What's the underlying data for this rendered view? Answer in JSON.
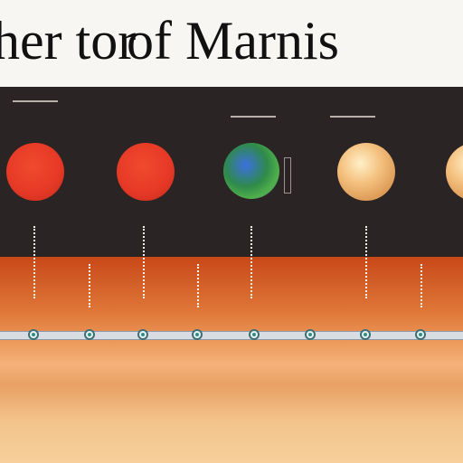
{
  "title": {
    "part1": "her tor",
    "part2": "of Marnis"
  },
  "columns": [
    {
      "heading": "",
      "label": "",
      "planet": "red-planet"
    },
    {
      "heading": "",
      "label": "",
      "planet": "red-planet"
    },
    {
      "heading": "",
      "label": "",
      "planet": "earth"
    },
    {
      "heading": "",
      "label": "",
      "planet": "jupiter"
    },
    {
      "heading": "",
      "label": "",
      "planet": "jupiter"
    }
  ],
  "band_label": "",
  "colors": {
    "header_bg": "#f7f6f3",
    "dark_bg": "#2a2524",
    "red_planet": "#e63a26",
    "earth_blue": "#2b66c9",
    "earth_green": "#51b04b",
    "jupiter": "#f4c07e",
    "timeline": "#d8dde3",
    "marker_accent": "#2f8e8a"
  }
}
